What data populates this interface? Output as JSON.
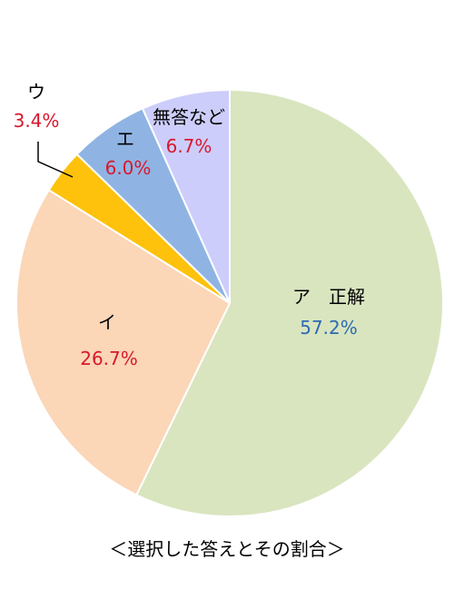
{
  "chart_data": {
    "type": "pie",
    "title": "＜選択した答えとその割合＞",
    "slices": [
      {
        "label": "ア　正解",
        "value": 57.2,
        "value_text": "57.2%",
        "color": "#d9e5bf",
        "value_color": "#2e6ab5"
      },
      {
        "label": "イ",
        "value": 26.7,
        "value_text": "26.7%",
        "color": "#fbd6b7",
        "value_color": "#d9182d"
      },
      {
        "label": "ウ",
        "value": 3.4,
        "value_text": "3.4%",
        "color": "#fec20d",
        "value_color": "#d9182d"
      },
      {
        "label": "エ",
        "value": 6.0,
        "value_text": "6.0%",
        "color": "#8fb4e3",
        "value_color": "#d9182d"
      },
      {
        "label": "無答など",
        "value": 6.7,
        "value_text": "6.7%",
        "color": "#cdcdfb",
        "value_color": "#d9182d"
      }
    ],
    "start": "12 o'clock",
    "direction": "clockwise",
    "legend": "none"
  }
}
